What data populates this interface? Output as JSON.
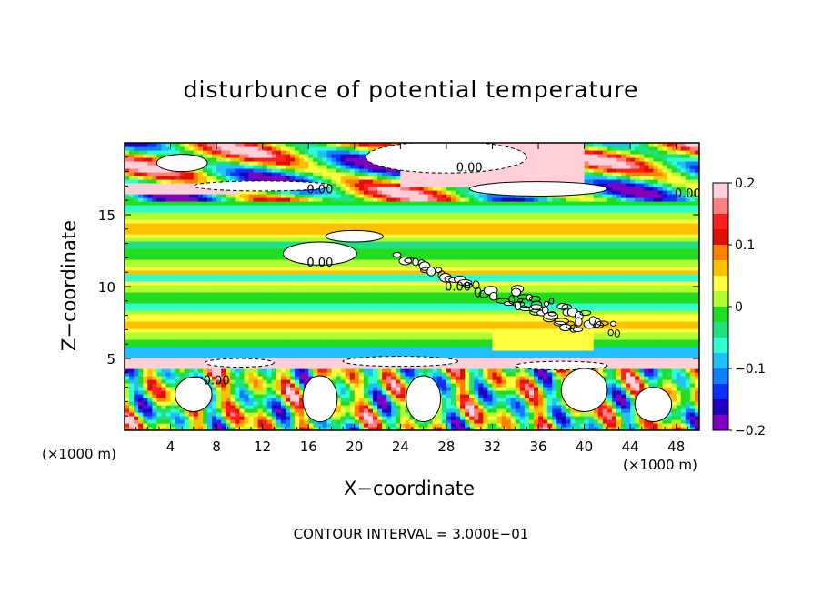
{
  "chart_data": {
    "type": "heatmap",
    "title": "disturbunce of potential temperature",
    "xlabel": "X−coordinate",
    "ylabel": "Z−coordinate",
    "x_unit_label": "(×1000 m)",
    "x_ticks": [
      "4",
      "8",
      "12",
      "16",
      "20",
      "24",
      "28",
      "32",
      "36",
      "40",
      "44",
      "48"
    ],
    "y_ticks": [
      "5",
      "10",
      "15"
    ],
    "xlim": [
      0,
      50
    ],
    "ylim": [
      0,
      20
    ],
    "colorbar": {
      "ticks": [
        "0.2",
        "0.1",
        "0",
        "−0.1",
        "−0.2"
      ],
      "range": [
        -0.2,
        0.2
      ],
      "colors": [
        "#ffd0d8",
        "#ff8080",
        "#ff2020",
        "#e01000",
        "#ff8000",
        "#ffc000",
        "#ffff40",
        "#b0ff30",
        "#20dd20",
        "#20e080",
        "#30ffd0",
        "#20c0ff",
        "#1080ff",
        "#1030ff",
        "#2000c0",
        "#8000c0"
      ]
    },
    "contour_labels": [
      "0.00",
      "0.00",
      "0.00",
      "0.00",
      "0.00",
      "0.00"
    ],
    "annotation": "CONTOUR INTERVAL = 3.000E−01"
  }
}
